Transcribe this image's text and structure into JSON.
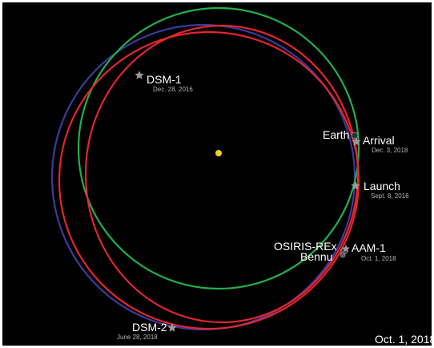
{
  "diagram": {
    "colors": {
      "background": "#000000",
      "earth_orbit": "#22b04a",
      "bennu_orbit": "#3b3a9c",
      "spacecraft_orbit": "#e3262b",
      "sun": "#f5d31d",
      "marker": "#9a9a9a",
      "label": "#ffffff",
      "sublabel": "#b5b5b5"
    },
    "labels": {
      "dsm1": "DSM-1",
      "dsm1_date": "Dec. 28, 2016",
      "earth": "Earth",
      "arrival": "Arrival",
      "arrival_date": "Dec. 3, 2018",
      "launch": "Launch",
      "launch_date": "Sept. 8, 2016",
      "osiris_rex": "OSIRIS-REx",
      "bennu": "Bennu",
      "aam1": "AAM-1",
      "aam1_date": "Oct. 1, 2018",
      "dsm2": "DSM-2",
      "dsm2_date": "June 28, 2018",
      "current_date": "Oct. 1, 2018"
    },
    "icons": [
      "sun-icon",
      "star-marker-icon",
      "earth-icon",
      "spacecraft-icon",
      "bennu-icon"
    ]
  }
}
